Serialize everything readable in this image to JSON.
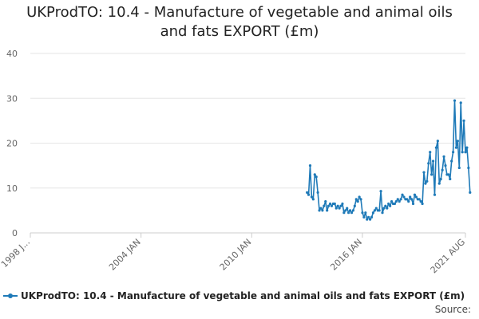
{
  "title_line1": "UKProdTO: 10.4 - Manufacture of vegetable and animal oils",
  "title_line2": "and fats EXPORT (£m)",
  "legend_label": "UKProdTO: 10.4 - Manufacture of vegetable and animal oils and fats EXPORT (£m)",
  "source_label": "Source:",
  "colors": {
    "series": "#1f7ab8",
    "grid": "#e6e6e6",
    "axis": "#cccccc"
  },
  "chart_data": {
    "type": "line",
    "title": "UKProdTO: 10.4 - Manufacture of vegetable and animal oils and fats EXPORT (£m)",
    "xlabel": "",
    "ylabel": "",
    "ylim": [
      0,
      40
    ],
    "yticks": [
      0,
      10,
      20,
      30,
      40
    ],
    "xlim": [
      "1998-01",
      "2021-08"
    ],
    "xticks": [
      {
        "label": "1998 J...",
        "date": "1998-01"
      },
      {
        "label": "2004 JAN",
        "date": "2004-01"
      },
      {
        "label": "2010 JAN",
        "date": "2010-01"
      },
      {
        "label": "2016 JAN",
        "date": "2016-01"
      },
      {
        "label": "2021 AUG",
        "date": "2021-08"
      }
    ],
    "grid": true,
    "legend": "bottom",
    "series": [
      {
        "name": "UKProdTO: 10.4 - Manufacture of vegetable and animal oils and fats EXPORT (£m)",
        "points": [
          [
            "2013-01",
            9.0
          ],
          [
            "2013-02",
            8.5
          ],
          [
            "2013-03",
            15.0
          ],
          [
            "2013-04",
            8.0
          ],
          [
            "2013-05",
            7.5
          ],
          [
            "2013-06",
            13.0
          ],
          [
            "2013-07",
            12.5
          ],
          [
            "2013-08",
            9.0
          ],
          [
            "2013-09",
            5.0
          ],
          [
            "2013-10",
            5.5
          ],
          [
            "2013-11",
            5.0
          ],
          [
            "2013-12",
            6.0
          ],
          [
            "2014-01",
            7.0
          ],
          [
            "2014-02",
            5.0
          ],
          [
            "2014-03",
            6.0
          ],
          [
            "2014-04",
            6.5
          ],
          [
            "2014-05",
            6.0
          ],
          [
            "2014-06",
            6.5
          ],
          [
            "2014-07",
            6.5
          ],
          [
            "2014-08",
            5.5
          ],
          [
            "2014-09",
            6.0
          ],
          [
            "2014-10",
            5.5
          ],
          [
            "2014-11",
            6.0
          ],
          [
            "2014-12",
            6.5
          ],
          [
            "2015-01",
            4.5
          ],
          [
            "2015-02",
            5.0
          ],
          [
            "2015-03",
            5.5
          ],
          [
            "2015-04",
            4.5
          ],
          [
            "2015-05",
            5.0
          ],
          [
            "2015-06",
            4.5
          ],
          [
            "2015-07",
            5.0
          ],
          [
            "2015-08",
            6.0
          ],
          [
            "2015-09",
            7.5
          ],
          [
            "2015-10",
            7.0
          ],
          [
            "2015-11",
            8.0
          ],
          [
            "2015-12",
            7.5
          ],
          [
            "2016-01",
            4.5
          ],
          [
            "2016-02",
            3.5
          ],
          [
            "2016-03",
            4.5
          ],
          [
            "2016-04",
            3.0
          ],
          [
            "2016-05",
            3.5
          ],
          [
            "2016-06",
            3.0
          ],
          [
            "2016-07",
            3.5
          ],
          [
            "2016-08",
            4.5
          ],
          [
            "2016-09",
            5.0
          ],
          [
            "2016-10",
            5.5
          ],
          [
            "2016-11",
            5.0
          ],
          [
            "2016-12",
            5.0
          ],
          [
            "2017-01",
            9.3
          ],
          [
            "2017-02",
            4.5
          ],
          [
            "2017-03",
            5.5
          ],
          [
            "2017-04",
            6.0
          ],
          [
            "2017-05",
            5.5
          ],
          [
            "2017-06",
            6.5
          ],
          [
            "2017-07",
            6.0
          ],
          [
            "2017-08",
            7.0
          ],
          [
            "2017-09",
            6.5
          ],
          [
            "2017-10",
            6.5
          ],
          [
            "2017-11",
            7.0
          ],
          [
            "2017-12",
            7.5
          ],
          [
            "2018-01",
            7.0
          ],
          [
            "2018-02",
            7.5
          ],
          [
            "2018-03",
            8.5
          ],
          [
            "2018-04",
            8.0
          ],
          [
            "2018-05",
            7.5
          ],
          [
            "2018-06",
            7.5
          ],
          [
            "2018-07",
            7.0
          ],
          [
            "2018-08",
            8.0
          ],
          [
            "2018-09",
            7.5
          ],
          [
            "2018-10",
            6.5
          ],
          [
            "2018-11",
            8.5
          ],
          [
            "2018-12",
            8.0
          ],
          [
            "2019-01",
            7.5
          ],
          [
            "2019-02",
            7.5
          ],
          [
            "2019-03",
            7.0
          ],
          [
            "2019-04",
            6.5
          ],
          [
            "2019-05",
            13.5
          ],
          [
            "2019-06",
            11.0
          ],
          [
            "2019-07",
            11.5
          ],
          [
            "2019-08",
            15.5
          ],
          [
            "2019-09",
            18.0
          ],
          [
            "2019-10",
            13.0
          ],
          [
            "2019-11",
            16.0
          ],
          [
            "2019-12",
            8.5
          ],
          [
            "2020-01",
            19.0
          ],
          [
            "2020-02",
            20.5
          ],
          [
            "2020-03",
            11.0
          ],
          [
            "2020-04",
            12.0
          ],
          [
            "2020-05",
            14.0
          ],
          [
            "2020-06",
            17.0
          ],
          [
            "2020-07",
            15.0
          ],
          [
            "2020-08",
            13.0
          ],
          [
            "2020-09",
            13.0
          ],
          [
            "2020-10",
            12.0
          ],
          [
            "2020-11",
            16.0
          ],
          [
            "2020-12",
            18.0
          ],
          [
            "2021-01",
            29.5
          ],
          [
            "2021-02",
            19.0
          ],
          [
            "2021-03",
            20.5
          ],
          [
            "2021-04",
            14.5
          ],
          [
            "2021-05",
            29.0
          ],
          [
            "2021-06",
            18.0
          ],
          [
            "2021-07",
            25.0
          ],
          [
            "2021-08",
            18.0
          ],
          [
            "2021-09",
            19.0
          ],
          [
            "2021-10",
            14.5
          ],
          [
            "2021-11",
            9.0
          ]
        ]
      }
    ]
  }
}
